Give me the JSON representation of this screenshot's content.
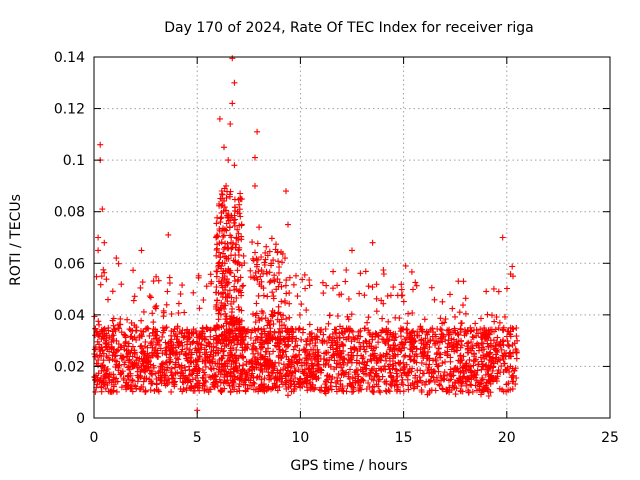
{
  "chart_data": {
    "type": "scatter",
    "title": "Day 170 of 2024, Rate Of TEC Index for receiver riga",
    "xlabel": "GPS time / hours",
    "ylabel": "ROTI / TECUs",
    "xlim": [
      0,
      25
    ],
    "ylim": [
      0,
      0.14
    ],
    "x_ticks": [
      0,
      5,
      10,
      15,
      20,
      25
    ],
    "x_tick_labels": [
      "0",
      "5",
      "10",
      "15",
      "20",
      "25"
    ],
    "y_ticks": [
      0,
      0.02,
      0.04,
      0.06,
      0.08,
      0.1,
      0.12,
      0.14
    ],
    "y_tick_labels": [
      "0",
      "0.02",
      "0.04",
      "0.06",
      "0.08",
      "0.1",
      "0.12",
      "0.14"
    ],
    "grid": true,
    "marker": "plus",
    "marker_color": "#ff0000",
    "series": [
      {
        "name": "ROTI",
        "data_range_hours": [
          0,
          20.5
        ],
        "typical_band": [
          0.01,
          0.035
        ],
        "notable_points": [
          {
            "x": 0.3,
            "y": 0.106
          },
          {
            "x": 0.3,
            "y": 0.1
          },
          {
            "x": 0.4,
            "y": 0.081
          },
          {
            "x": 0.2,
            "y": 0.07
          },
          {
            "x": 0.5,
            "y": 0.068
          },
          {
            "x": 2.3,
            "y": 0.065
          },
          {
            "x": 3.6,
            "y": 0.071
          },
          {
            "x": 6.1,
            "y": 0.116
          },
          {
            "x": 6.3,
            "y": 0.105
          },
          {
            "x": 6.5,
            "y": 0.1
          },
          {
            "x": 6.6,
            "y": 0.114
          },
          {
            "x": 6.7,
            "y": 0.1395
          },
          {
            "x": 6.8,
            "y": 0.13
          },
          {
            "x": 6.7,
            "y": 0.122
          },
          {
            "x": 6.8,
            "y": 0.098
          },
          {
            "x": 6.4,
            "y": 0.09
          },
          {
            "x": 6.2,
            "y": 0.085
          },
          {
            "x": 6.5,
            "y": 0.078
          },
          {
            "x": 6.9,
            "y": 0.07
          },
          {
            "x": 7.9,
            "y": 0.111
          },
          {
            "x": 7.8,
            "y": 0.101
          },
          {
            "x": 7.8,
            "y": 0.09
          },
          {
            "x": 8.0,
            "y": 0.074
          },
          {
            "x": 9.3,
            "y": 0.088
          },
          {
            "x": 9.4,
            "y": 0.075
          },
          {
            "x": 12.5,
            "y": 0.065
          },
          {
            "x": 13.5,
            "y": 0.068
          },
          {
            "x": 15.1,
            "y": 0.059
          },
          {
            "x": 17.9,
            "y": 0.053
          },
          {
            "x": 19.8,
            "y": 0.07
          },
          {
            "x": 20.3,
            "y": 0.055
          },
          {
            "x": 5.0,
            "y": 0.003
          },
          {
            "x": 0.2,
            "y": 0.065
          }
        ],
        "activity_profile": [
          {
            "x": 0,
            "spread": 0.026
          },
          {
            "x": 0.5,
            "spread": 0.03
          },
          {
            "x": 1.5,
            "spread": 0.022
          },
          {
            "x": 2.5,
            "spread": 0.025
          },
          {
            "x": 3.5,
            "spread": 0.02
          },
          {
            "x": 4.5,
            "spread": 0.018
          },
          {
            "x": 5.5,
            "spread": 0.022
          },
          {
            "x": 6.5,
            "spread": 0.04
          },
          {
            "x": 7.5,
            "spread": 0.03
          },
          {
            "x": 8.5,
            "spread": 0.026
          },
          {
            "x": 9.5,
            "spread": 0.024
          },
          {
            "x": 10.5,
            "spread": 0.019
          },
          {
            "x": 11.5,
            "spread": 0.022
          },
          {
            "x": 12.5,
            "spread": 0.022
          },
          {
            "x": 13.5,
            "spread": 0.024
          },
          {
            "x": 14.5,
            "spread": 0.024
          },
          {
            "x": 15.5,
            "spread": 0.026
          },
          {
            "x": 16.5,
            "spread": 0.02
          },
          {
            "x": 17.5,
            "spread": 0.019
          },
          {
            "x": 18.5,
            "spread": 0.02
          },
          {
            "x": 19.5,
            "spread": 0.022
          },
          {
            "x": 20.5,
            "spread": 0.022
          }
        ]
      }
    ]
  }
}
